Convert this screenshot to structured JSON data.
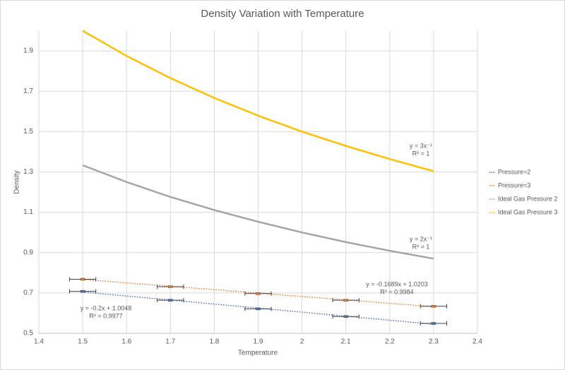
{
  "chart_data": {
    "type": "scatter",
    "title": "Density Variation with Temperature",
    "x_label": "Temperature",
    "y_label": "Density",
    "xlim": [
      1.4,
      2.4
    ],
    "xticks": [
      1.4,
      1.5,
      1.6,
      1.7,
      1.8,
      1.9,
      2,
      2.1,
      2.2,
      2.3,
      2.4
    ],
    "ylim": [
      0.5,
      2.0
    ],
    "yticks": [
      0.5,
      0.7,
      0.9,
      1.1,
      1.3,
      1.5,
      1.7,
      1.9
    ],
    "grid": true,
    "legend": "right",
    "series": [
      {
        "name": "Pressure=2",
        "color": "#4472c4",
        "x": [
          1.5,
          1.7,
          1.9,
          2.1,
          2.3
        ],
        "values": [
          0.708,
          0.664,
          0.621,
          0.583,
          0.549
        ],
        "x_error": 0.03,
        "trendline": {
          "slope": -0.2,
          "intercept": 1.0048,
          "label": "y = -0.2x + 1.0048",
          "r2_label": "R² = 0.9977"
        }
      },
      {
        "name": "Pressure=3",
        "color": "#ed7d31",
        "x": [
          1.5,
          1.7,
          1.9,
          2.1,
          2.3
        ],
        "values": [
          0.768,
          0.731,
          0.697,
          0.664,
          0.634
        ],
        "x_error": 0.03,
        "trendline": {
          "slope": -0.1689,
          "intercept": 1.0203,
          "label": "y = -0.1689x + 1.0203",
          "r2_label": "R² = 0.9984"
        }
      },
      {
        "name": "Ideal Gas Pressure 2",
        "color": "#a5a5a5",
        "x": [
          1.5,
          1.6,
          1.7,
          1.8,
          1.9,
          2.0,
          2.1,
          2.2,
          2.3
        ],
        "values": [
          1.333,
          1.25,
          1.176,
          1.111,
          1.053,
          1.0,
          0.952,
          0.909,
          0.87
        ],
        "trendline": {
          "label": "y = 2x⁻¹",
          "r2_label": "R² = 1"
        }
      },
      {
        "name": "Ideal Gas Pressure 3",
        "color": "#ffc000",
        "x": [
          1.5,
          1.6,
          1.7,
          1.8,
          1.9,
          2.0,
          2.1,
          2.2,
          2.3
        ],
        "values": [
          2.0,
          1.875,
          1.765,
          1.667,
          1.579,
          1.5,
          1.429,
          1.364,
          1.304
        ],
        "trendline": {
          "label": "y = 3x⁻¹",
          "r2_label": "R² = 1"
        }
      }
    ]
  }
}
